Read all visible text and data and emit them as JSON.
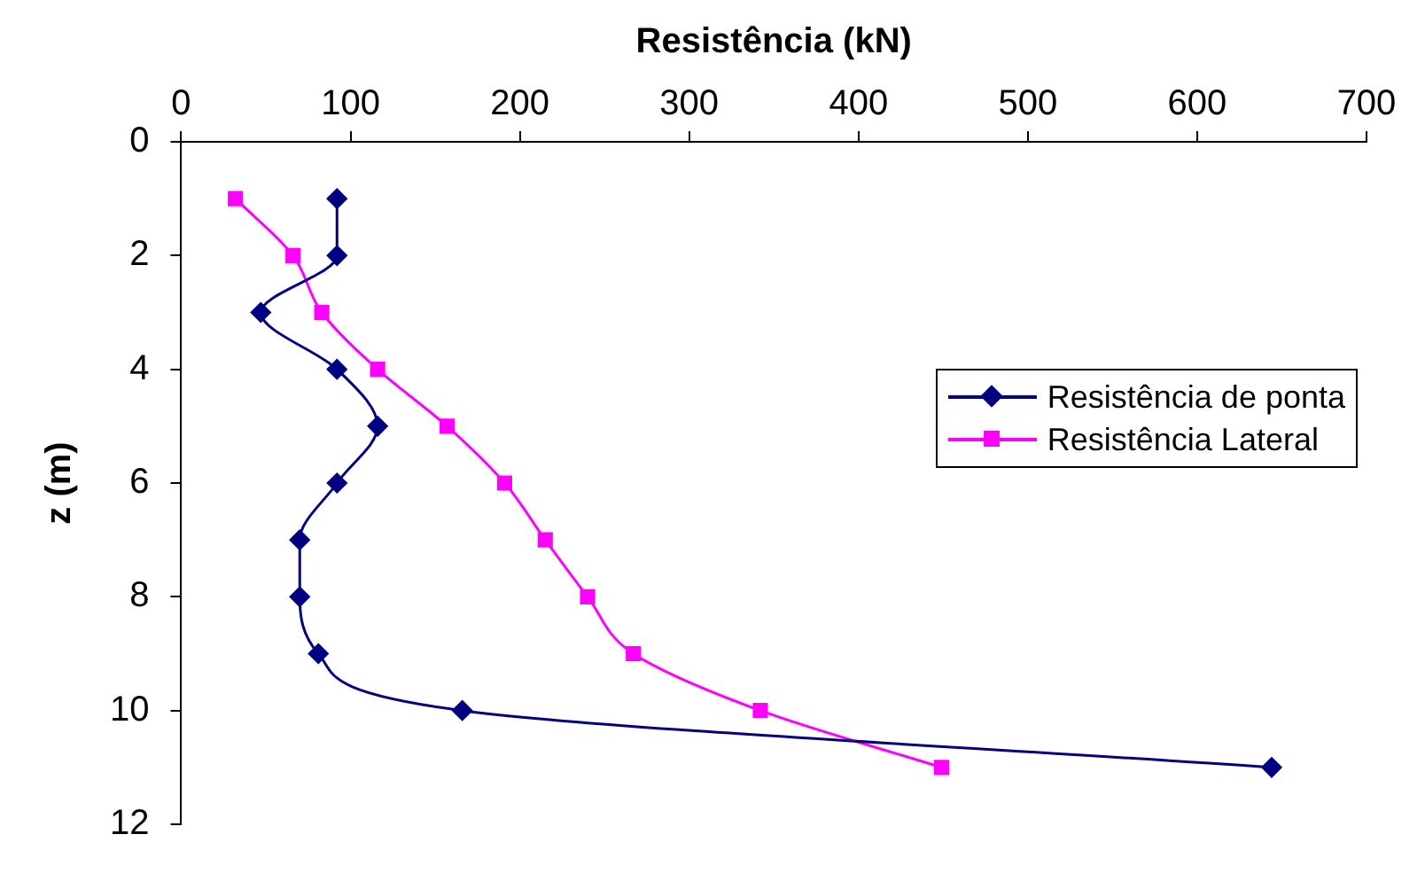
{
  "chart_data": {
    "type": "line",
    "orientation": "horizontal",
    "xlabel": "Resistência (kN)",
    "ylabel": "z (m)",
    "xlim": [
      0,
      700
    ],
    "xticks": [
      0,
      100,
      200,
      300,
      400,
      500,
      600,
      700
    ],
    "ylim": [
      12,
      0
    ],
    "yticks": [
      0,
      2,
      4,
      6,
      8,
      10,
      12
    ],
    "grid": false,
    "legend": "right",
    "line_style": "solid",
    "series": [
      {
        "name": "Resistência de ponta",
        "color": "#000080",
        "marker": "diamond",
        "x": [
          1,
          2,
          3,
          4,
          5,
          6,
          7,
          8,
          9,
          10,
          11
        ],
        "values": [
          92,
          92,
          47,
          92,
          116,
          92,
          70,
          70,
          81,
          166,
          644
        ]
      },
      {
        "name": "Resistência Lateral",
        "color": "#ff00ff",
        "marker": "square",
        "x": [
          1,
          2,
          3,
          4,
          5,
          6,
          7,
          8,
          9,
          10,
          11
        ],
        "values": [
          32,
          66,
          83,
          116,
          157,
          191,
          215,
          240,
          267,
          342,
          449
        ]
      }
    ]
  }
}
